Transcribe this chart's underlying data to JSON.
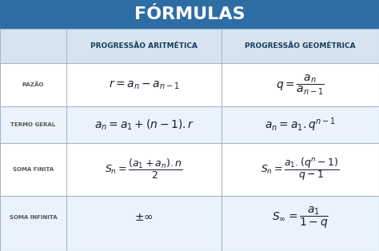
{
  "title": "FÓRMULAS",
  "title_bg": "#2e6da4",
  "title_color": "#ffffff",
  "header_color": "#d6e4f0",
  "row_bg_light": "#eaf3fb",
  "row_bg_white": "#ffffff",
  "border_color": "#a0b8cc",
  "formula_color": "#1a1a2e",
  "col_headers": [
    "PROGRESSÃO ARITMÉTICA",
    "PROGRESSÃO GEOMÉTRICA"
  ],
  "row_labels": [
    "RAZÃO",
    "TERMO GERAL",
    "SOMA FINITA",
    "SOMA INFINITA"
  ],
  "pa_formulas": [
    "$r = a_n - a_{n-1}$",
    "$a_n = a_1 + (n-1).r$",
    "$S_n = \\dfrac{(a_1 + a_n).n}{2}$",
    "$\\pm\\infty$"
  ],
  "pg_formulas": [
    "$q = \\dfrac{a_n}{a_{n-1}}$",
    "$a_n = a_1.q^{n-1}$",
    "$S_n = \\dfrac{a_1.(q^n - 1)}{q - 1}$",
    "$S_{\\infty} = \\dfrac{a_1}{1 - q}$"
  ],
  "figsize": [
    4.74,
    3.14
  ],
  "dpi": 100
}
